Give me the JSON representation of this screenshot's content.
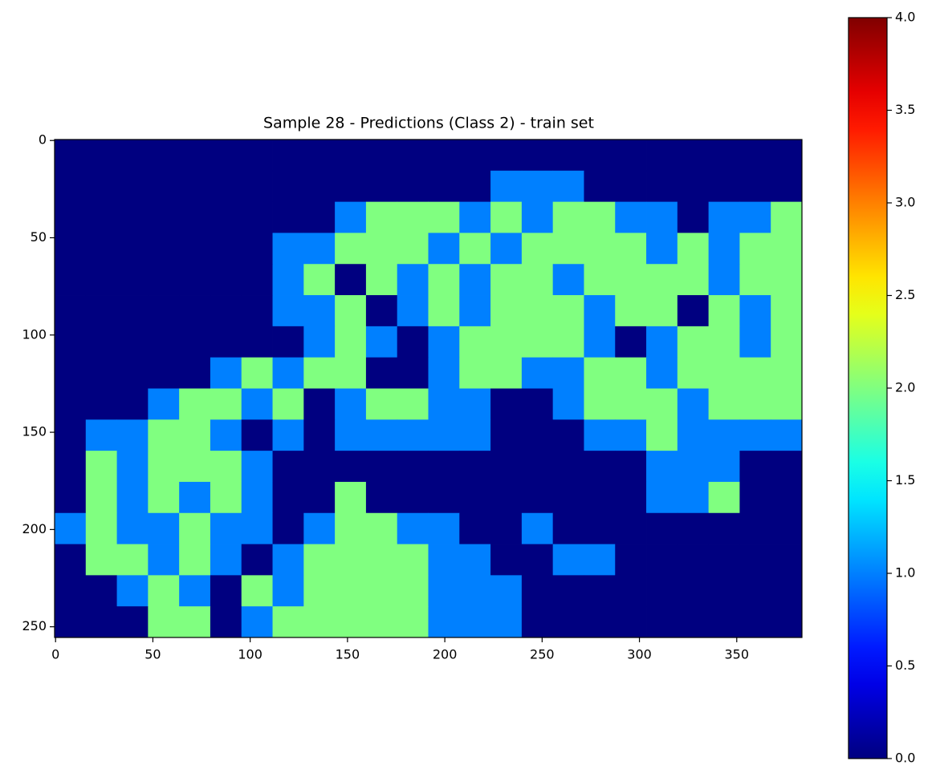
{
  "chart_data": {
    "type": "image",
    "title": "Sample 28 - Predictions (Class 2) - train set",
    "cmap": "jet",
    "clim": [
      0,
      4
    ],
    "xlim": [
      -0.5,
      383.5
    ],
    "ylim": [
      255.5,
      -0.5
    ],
    "xticks": [
      0,
      50,
      100,
      150,
      200,
      250,
      300,
      350
    ],
    "yticks": [
      0,
      50,
      100,
      150,
      200,
      250
    ],
    "colorbar_ticks": [
      {
        "value": 0,
        "label": "0.0"
      },
      {
        "value": 0.5,
        "label": "0.5"
      },
      {
        "value": 1,
        "label": "1.0"
      },
      {
        "value": 1.5,
        "label": "1.5"
      },
      {
        "value": 2,
        "label": "2.0"
      },
      {
        "value": 2.5,
        "label": "2.5"
      },
      {
        "value": 3,
        "label": "3.0"
      },
      {
        "value": 3.5,
        "label": "3.5"
      },
      {
        "value": 4,
        "label": "4.0"
      }
    ],
    "z": [
      [
        0,
        0,
        0,
        0,
        0,
        0,
        0,
        0,
        0,
        0,
        0,
        0,
        0,
        0,
        0,
        0,
        0,
        0,
        0,
        0,
        0,
        0,
        0,
        0
      ],
      [
        0,
        0,
        0,
        0,
        0,
        0,
        0,
        0,
        0,
        0,
        0,
        0,
        0,
        0,
        1,
        1,
        1,
        0,
        0,
        0,
        0,
        0,
        0,
        0
      ],
      [
        0,
        0,
        0,
        0,
        0,
        0,
        0,
        0,
        0,
        1,
        2,
        2,
        2,
        1,
        2,
        1,
        2,
        2,
        1,
        1,
        0,
        1,
        1,
        2
      ],
      [
        0,
        0,
        0,
        0,
        0,
        0,
        0,
        1,
        1,
        2,
        2,
        2,
        1,
        2,
        1,
        2,
        2,
        2,
        2,
        1,
        2,
        1,
        2,
        2
      ],
      [
        0,
        0,
        0,
        0,
        0,
        0,
        0,
        1,
        2,
        0,
        2,
        1,
        2,
        1,
        2,
        2,
        1,
        2,
        2,
        2,
        2,
        1,
        2,
        2
      ],
      [
        0,
        0,
        0,
        0,
        0,
        0,
        0,
        1,
        1,
        2,
        0,
        1,
        2,
        1,
        2,
        2,
        2,
        1,
        2,
        2,
        0,
        2,
        1,
        2
      ],
      [
        0,
        0,
        0,
        0,
        0,
        0,
        0,
        0,
        1,
        2,
        1,
        0,
        1,
        2,
        2,
        2,
        2,
        1,
        0,
        1,
        2,
        2,
        1,
        2
      ],
      [
        0,
        0,
        0,
        0,
        0,
        1,
        2,
        1,
        2,
        2,
        0,
        0,
        1,
        2,
        2,
        1,
        1,
        2,
        2,
        1,
        2,
        2,
        2,
        2
      ],
      [
        0,
        0,
        0,
        1,
        2,
        2,
        1,
        2,
        0,
        1,
        2,
        2,
        1,
        1,
        0,
        0,
        1,
        2,
        2,
        2,
        1,
        2,
        2,
        2
      ],
      [
        0,
        1,
        1,
        2,
        2,
        1,
        0,
        1,
        0,
        1,
        1,
        1,
        1,
        1,
        0,
        0,
        0,
        1,
        1,
        2,
        1,
        1,
        1,
        1
      ],
      [
        0,
        2,
        1,
        2,
        2,
        2,
        1,
        0,
        0,
        0,
        0,
        0,
        0,
        0,
        0,
        0,
        0,
        0,
        0,
        1,
        1,
        1,
        0,
        0
      ],
      [
        0,
        2,
        1,
        2,
        1,
        2,
        1,
        0,
        0,
        2,
        0,
        0,
        0,
        0,
        0,
        0,
        0,
        0,
        0,
        1,
        1,
        2,
        0,
        0
      ],
      [
        1,
        2,
        1,
        1,
        2,
        1,
        1,
        0,
        1,
        2,
        2,
        1,
        1,
        0,
        0,
        1,
        0,
        0,
        0,
        0,
        0,
        0,
        0,
        0
      ],
      [
        0,
        2,
        2,
        1,
        2,
        1,
        0,
        1,
        2,
        2,
        2,
        2,
        1,
        1,
        0,
        0,
        1,
        1,
        0,
        0,
        0,
        0,
        0,
        0
      ],
      [
        0,
        0,
        1,
        2,
        1,
        0,
        2,
        1,
        2,
        2,
        2,
        2,
        1,
        1,
        1,
        0,
        0,
        0,
        0,
        0,
        0,
        0,
        0,
        0
      ],
      [
        0,
        0,
        0,
        2,
        2,
        0,
        1,
        2,
        2,
        2,
        2,
        2,
        1,
        1,
        1,
        0,
        0,
        0,
        0,
        0,
        0,
        0,
        0,
        0
      ]
    ]
  }
}
